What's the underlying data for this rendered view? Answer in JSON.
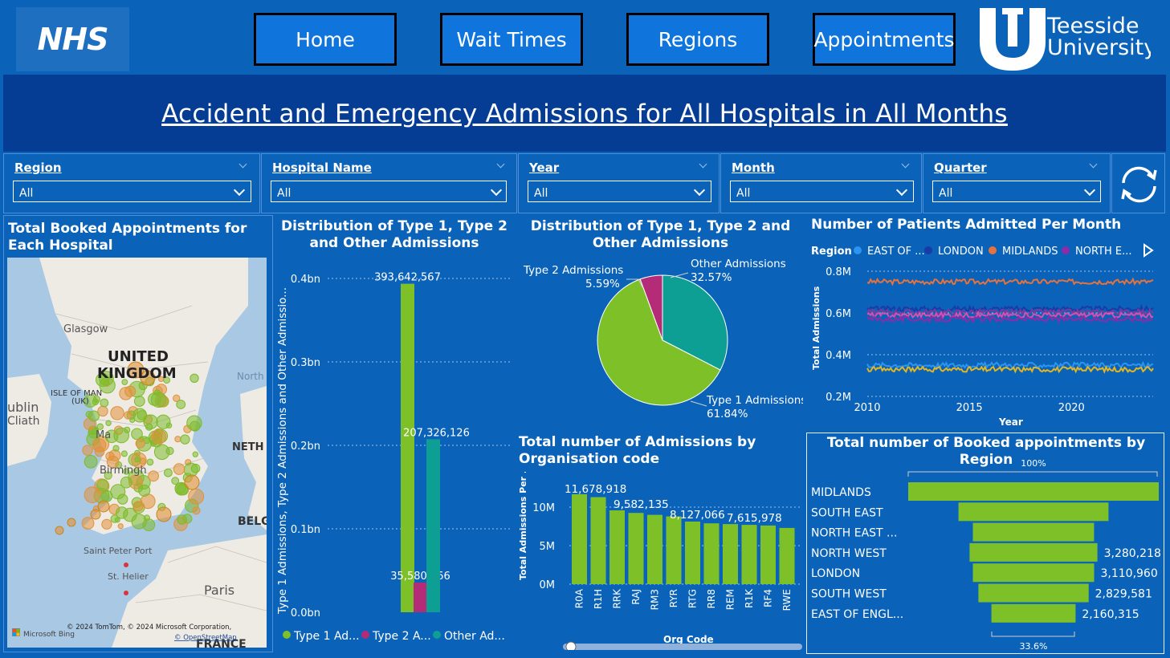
{
  "header": {
    "logo": "NHS",
    "nav": [
      "Home",
      "Wait Times",
      "Regions",
      "Appointments"
    ],
    "university": [
      "Teesside",
      "University"
    ]
  },
  "title": "Accident and Emergency Admissions for All Hospitals in All Months",
  "filters": [
    {
      "label": "Region",
      "value": "All"
    },
    {
      "label": "Hospital Name",
      "value": "All"
    },
    {
      "label": "Year",
      "value": "All"
    },
    {
      "label": "Month",
      "value": "All"
    },
    {
      "label": "Quarter",
      "value": "All"
    }
  ],
  "map_panel": {
    "title": "Total Booked Appointments for Each Hospital",
    "labels": {
      "glasgow": "Glasgow",
      "uk1": "UNITED",
      "uk2": "KINGDOM",
      "iom1": "ISLE OF MAN",
      "iom2": "(UK)",
      "dublin": "ublin",
      "cliath": "Cliath",
      "north": "North",
      "neth": "NETH",
      "belg": "BELG",
      "birm": "Birmingh",
      "man": "Ma",
      "spp": "Saint Peter Port",
      "sth": "St. Helier",
      "paris": "Paris",
      "france": "FRANCE"
    },
    "attribution": "© 2024 TomTom, © 2024 Microsoft Corporation,",
    "osm": "© OpenStreetMap",
    "bing": "Microsoft Bing",
    "colors": {
      "marker_green": "#7dbb2c",
      "marker_orange": "#e2913b",
      "land": "#eeeae4",
      "sea": "#a9c8e4"
    }
  },
  "charts": {
    "bar": {
      "title": "Distribution of Type 1, Type 2 and Other Admissions",
      "ylabel": "Type 1 Admissions, Type 2 Admissions and Other Admissio...",
      "ticks": [
        "0.4bn",
        "0.3bn",
        "0.2bn",
        "0.1bn",
        "0.0bn"
      ],
      "legend": [
        "Type 1 Ad...",
        "Type 2 A...",
        "Other Ad..."
      ],
      "chart_data": {
        "type": "bar",
        "categories": [
          "Type 1 Admissions",
          "Type 2 Admissions",
          "Other Admissions"
        ],
        "values": [
          393642567,
          35580166,
          207326126
        ],
        "labels": [
          "393,642,567",
          "35,580,166",
          "207,326,126"
        ],
        "ylim": [
          0,
          400000000
        ],
        "colors": [
          "#7dc028",
          "#b42c78",
          "#0d9f94"
        ]
      }
    },
    "pie": {
      "title": "Distribution of Type 1, Type 2 and Other Admissions",
      "labels": [
        {
          "name": "Type 1 Admissions",
          "pct": "61.84%"
        },
        {
          "name": "Type 2 Admissions",
          "pct": "5.59%"
        },
        {
          "name": "Other Admissions",
          "pct": "32.57%"
        }
      ],
      "chart_data": {
        "type": "pie",
        "categories": [
          "Type 1 Admissions",
          "Type 2 Admissions",
          "Other Admissions"
        ],
        "values": [
          61.84,
          5.59,
          32.57
        ],
        "colors": [
          "#7dc028",
          "#b42c78",
          "#0d9f94"
        ]
      }
    },
    "line": {
      "title": "Number of Patients Admitted Per Month",
      "legend_title": "Region",
      "legend": [
        "EAST OF ...",
        "LONDON",
        "MIDLANDS",
        "NORTH E..."
      ],
      "ylabel": "Total Admissions",
      "xlabel": "Year",
      "yticks": [
        "0.8M",
        "0.6M",
        "0.4M",
        "0.2M"
      ],
      "xticks": [
        "2010",
        "2015",
        "2020"
      ],
      "chart_data": {
        "type": "line",
        "x_range": [
          2010,
          2024
        ],
        "ylim": [
          200000,
          800000
        ],
        "series": [
          {
            "name": "MIDLANDS",
            "color": "#e8713c",
            "level": 750000
          },
          {
            "name": "LONDON",
            "color": "#1a3aa8",
            "level": 620000
          },
          {
            "name": "",
            "color": "#7a3b9e",
            "level": 605000
          },
          {
            "name": "",
            "color": "#d84fb0",
            "level": 590000
          },
          {
            "name": "NORTH E...",
            "color": "#8e2ba6",
            "level": 570000
          },
          {
            "name": "EAST OF ...",
            "color": "#2c95f0",
            "level": 350000
          },
          {
            "name": "",
            "color": "#e3b51e",
            "level": 330000
          }
        ]
      }
    },
    "org": {
      "title": "Total number of Admissions by Organisation code",
      "ylabel": "Total Admissions Per ...",
      "xlabel": "Org Code",
      "yticks": [
        "10M",
        "5M",
        "0M"
      ],
      "data_labels": [
        "11,678,918",
        "9,582,135",
        "8,127,066",
        "7,615,978"
      ],
      "chart_data": {
        "type": "bar",
        "categories": [
          "R0A",
          "R1H",
          "RRK",
          "RAJ",
          "RM3",
          "RYR",
          "RTG",
          "RR8",
          "REM",
          "R1K",
          "RF4",
          "RWE"
        ],
        "values": [
          11678918,
          11300000,
          9582135,
          9250000,
          9000000,
          8800000,
          8127066,
          7900000,
          7800000,
          7700000,
          7615978,
          7300000
        ],
        "ylim": [
          0,
          12500000
        ],
        "color": "#7dc028"
      }
    },
    "funnel": {
      "title": "Total number of Booked appointments by Region",
      "top_pct": "100%",
      "bottom_pct": "33.6%",
      "chart_data": {
        "type": "bar",
        "categories": [
          "MIDLANDS",
          "SOUTH EAST",
          "NORTH EAST ...",
          "NORTH WEST",
          "LONDON",
          "SOUTH WEST",
          "EAST OF ENGL..."
        ],
        "values": [
          6430000,
          3850000,
          3110000,
          3280218,
          3110960,
          2829581,
          2160315
        ],
        "labels": [
          "",
          "",
          "",
          "3,280,218",
          "3,110,960",
          "2,829,581",
          "2,160,315"
        ],
        "color": "#7dc028"
      }
    }
  }
}
